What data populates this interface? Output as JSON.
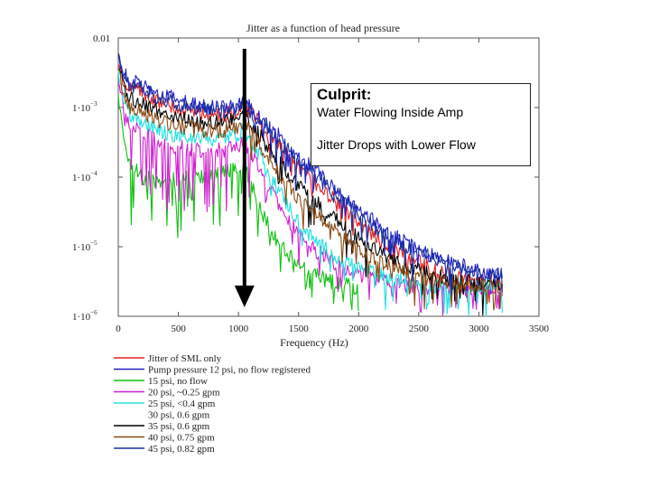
{
  "chart_data": {
    "type": "line",
    "title": "Jitter as a function of head pressure",
    "xlabel": "Frequency (Hz)",
    "ylabel": "",
    "yscale": "log",
    "xlim": [
      0,
      3500
    ],
    "ylim": [
      1e-06,
      0.01
    ],
    "x_ticks": [
      0,
      500,
      1000,
      1500,
      2000,
      2500,
      3000,
      3500
    ],
    "x_tick_labels": [
      "0",
      "500",
      "1000",
      "1500",
      "2000",
      "2500",
      "3000",
      "3500"
    ],
    "y_ticks": [
      {
        "value": 0.01,
        "mantissa": "0.01",
        "exp": ""
      },
      {
        "value": 0.001,
        "mantissa": "1·10",
        "exp": "−3"
      },
      {
        "value": 0.0001,
        "mantissa": "1·10",
        "exp": "−4"
      },
      {
        "value": 1e-05,
        "mantissa": "1·10",
        "exp": "−5"
      },
      {
        "value": 1e-06,
        "mantissa": "1·10",
        "exp": "−6"
      }
    ],
    "series": [
      {
        "name": "Jitter of SML only",
        "color": "#e02020",
        "x": [
          0,
          40,
          100,
          200,
          300,
          400,
          500,
          600,
          700,
          800,
          900,
          1000,
          1050,
          1100,
          1200,
          1300,
          1400,
          1500,
          1600,
          1700,
          1800,
          1900,
          2000,
          2200,
          2400,
          2600,
          2800,
          3000,
          3200
        ],
        "y": [
          0.0045,
          0.0026,
          0.0019,
          0.0016,
          0.0013,
          0.0011,
          0.00098,
          0.00088,
          0.00082,
          0.00078,
          0.0008,
          0.00088,
          0.001,
          0.00082,
          0.00055,
          0.00035,
          0.00022,
          0.00014,
          9.5e-05,
          7e-05,
          4.8e-05,
          3.2e-05,
          2.2e-05,
          1.2e-05,
          7.5e-06,
          5e-06,
          3.8e-06,
          3.2e-06,
          3e-06
        ]
      },
      {
        "name": "Pump pressure 12 psi, no flow registered",
        "color": "#2020c0",
        "x": [
          0,
          40,
          100,
          200,
          300,
          400,
          500,
          600,
          700,
          800,
          900,
          1000,
          1050,
          1100,
          1200,
          1300,
          1400,
          1500,
          1600,
          1700,
          1800,
          1900,
          2000,
          2200,
          2400,
          2600,
          2800,
          3000,
          3200
        ],
        "y": [
          0.0055,
          0.0032,
          0.0024,
          0.0021,
          0.0018,
          0.0015,
          0.0013,
          0.00115,
          0.00105,
          0.001,
          0.00098,
          0.00105,
          0.0012,
          0.00098,
          0.00068,
          0.00045,
          0.0003,
          0.0002,
          0.00014,
          0.0001,
          7e-05,
          5e-05,
          3.5e-05,
          1.8e-05,
          1.1e-05,
          7.5e-06,
          5.6e-06,
          4.6e-06,
          4e-06
        ]
      },
      {
        "name": "15 psi, no flow",
        "color": "#10c010",
        "x": [
          0,
          40,
          100,
          200,
          300,
          400,
          500,
          600,
          700,
          800,
          900,
          1000,
          1050,
          1100,
          1200,
          1300,
          1400,
          1500,
          1600,
          1700,
          1800,
          1900,
          2000
        ],
        "y": [
          0.0012,
          0.0004,
          0.00016,
          0.0001,
          9e-05,
          9e-05,
          9.5e-05,
          0.0001,
          0.000105,
          0.00011,
          0.00012,
          0.00014,
          0.00016,
          8e-05,
          3e-05,
          1.4e-05,
          8e-06,
          5.5e-06,
          4.2e-06,
          3.5e-06,
          3e-06,
          2.8e-06,
          2.6e-06
        ]
      },
      {
        "name": "20 psi, ~0.25 gpm",
        "color": "#d020d0",
        "x": [
          0,
          40,
          100,
          200,
          300,
          400,
          500,
          600,
          700,
          800,
          900,
          1000,
          1050,
          1100,
          1200,
          1300,
          1400,
          1500,
          1600,
          1700,
          1800,
          1900,
          2000,
          2200,
          2400,
          2600,
          2800,
          3000,
          3200
        ],
        "y": [
          0.0025,
          0.0011,
          0.00055,
          0.00042,
          0.00035,
          0.0003,
          0.00027,
          0.00025,
          0.00024,
          0.00024,
          0.00025,
          0.00028,
          0.00034,
          0.00022,
          0.00011,
          5e-05,
          2.6e-05,
          1.5e-05,
          1e-05,
          7.5e-06,
          5.8e-06,
          4.6e-06,
          4e-06,
          3.2e-06,
          2.8e-06,
          2.6e-06,
          2.5e-06,
          2.4e-06,
          2.4e-06
        ]
      },
      {
        "name": "25 psi, <0.4 gpm",
        "color": "#20e0e0",
        "x": [
          0,
          40,
          100,
          200,
          300,
          400,
          500,
          600,
          700,
          800,
          900,
          1000,
          1050,
          1100,
          1200,
          1300,
          1400,
          1500,
          1600,
          1700,
          1800,
          1900,
          2000,
          2200,
          2400,
          2600,
          2800,
          3000,
          3200
        ],
        "y": [
          0.0032,
          0.0015,
          0.0008,
          0.0006,
          0.0005,
          0.00043,
          0.00039,
          0.00036,
          0.00035,
          0.00035,
          0.00037,
          0.00042,
          0.0005,
          0.00034,
          0.00018,
          8.5e-05,
          4.2e-05,
          2.3e-05,
          1.4e-05,
          1e-05,
          7.5e-06,
          6e-06,
          5e-06,
          3.8e-06,
          3.2e-06,
          2.9e-06,
          2.8e-06,
          2.7e-06,
          2.7e-06
        ]
      },
      {
        "name": "30 psi, 0.6 gpm",
        "color": "#ffffff",
        "x": [],
        "y": []
      },
      {
        "name": "35 psi, 0.6 gpm",
        "color": "#000000",
        "x": [
          0,
          40,
          100,
          200,
          300,
          400,
          500,
          600,
          700,
          800,
          900,
          1000,
          1050,
          1100,
          1200,
          1300,
          1400,
          1500,
          1600,
          1700,
          1800,
          1900,
          2000,
          2200,
          2400,
          2600,
          2800,
          3000,
          3200
        ],
        "y": [
          0.004,
          0.0021,
          0.0013,
          0.0011,
          0.00092,
          0.0008,
          0.00072,
          0.00066,
          0.00062,
          0.0006,
          0.00062,
          0.0007,
          0.00082,
          0.0006,
          0.00036,
          0.0002,
          0.00012,
          7.5e-05,
          5e-05,
          3.6e-05,
          2.6e-05,
          1.8e-05,
          1.3e-05,
          7.5e-06,
          5.2e-06,
          4e-06,
          3.4e-06,
          3e-06,
          2.8e-06
        ]
      },
      {
        "name": "40 psi, 0.75 gpm",
        "color": "#8b4a12",
        "x": [
          0,
          40,
          100,
          200,
          300,
          400,
          500,
          600,
          700,
          800,
          900,
          1000,
          1050,
          1100,
          1200,
          1300,
          1400,
          1500,
          1600,
          1700,
          1800,
          1900,
          2000,
          2200,
          2400,
          2600,
          2800,
          3000,
          3200
        ],
        "y": [
          0.0035,
          0.0018,
          0.001,
          0.00082,
          0.0007,
          0.0006,
          0.00054,
          0.0005,
          0.00047,
          0.00046,
          0.00048,
          0.00054,
          0.00064,
          0.00046,
          0.00026,
          0.00014,
          8e-05,
          5e-05,
          3.3e-05,
          2.4e-05,
          1.7e-05,
          1.2e-05,
          9e-06,
          5.6e-06,
          4.2e-06,
          3.4e-06,
          3e-06,
          2.7e-06,
          2.6e-06
        ]
      },
      {
        "name": "45 psi, 0.82 gpm",
        "color": "#1830a0",
        "x": [
          0,
          40,
          100,
          200,
          300,
          400,
          500,
          600,
          700,
          800,
          900,
          1000,
          1050,
          1100,
          1200,
          1300,
          1400,
          1500,
          1600,
          1700,
          1800,
          1900,
          2000,
          2200,
          2400,
          2600,
          2800,
          3000,
          3200
        ],
        "y": [
          0.005,
          0.0028,
          0.0021,
          0.0018,
          0.0015,
          0.0013,
          0.0011,
          0.001,
          0.00094,
          0.0009,
          0.00092,
          0.001,
          0.00115,
          0.00088,
          0.0006,
          0.0004,
          0.00026,
          0.00017,
          0.00012,
          8.5e-05,
          6e-05,
          4.2e-05,
          3e-05,
          1.6e-05,
          1e-05,
          7e-06,
          5.2e-06,
          4.3e-06,
          3.8e-06
        ]
      }
    ],
    "annotation_arrow": {
      "from_x": 1050,
      "from_y": 0.01,
      "to_x": 1050,
      "to_y": 1e-06,
      "color": "#000000"
    },
    "callout": {
      "title": "Culprit:",
      "line1": "Water Flowing Inside Amp",
      "line2": "Jitter Drops with Lower Flow"
    }
  }
}
